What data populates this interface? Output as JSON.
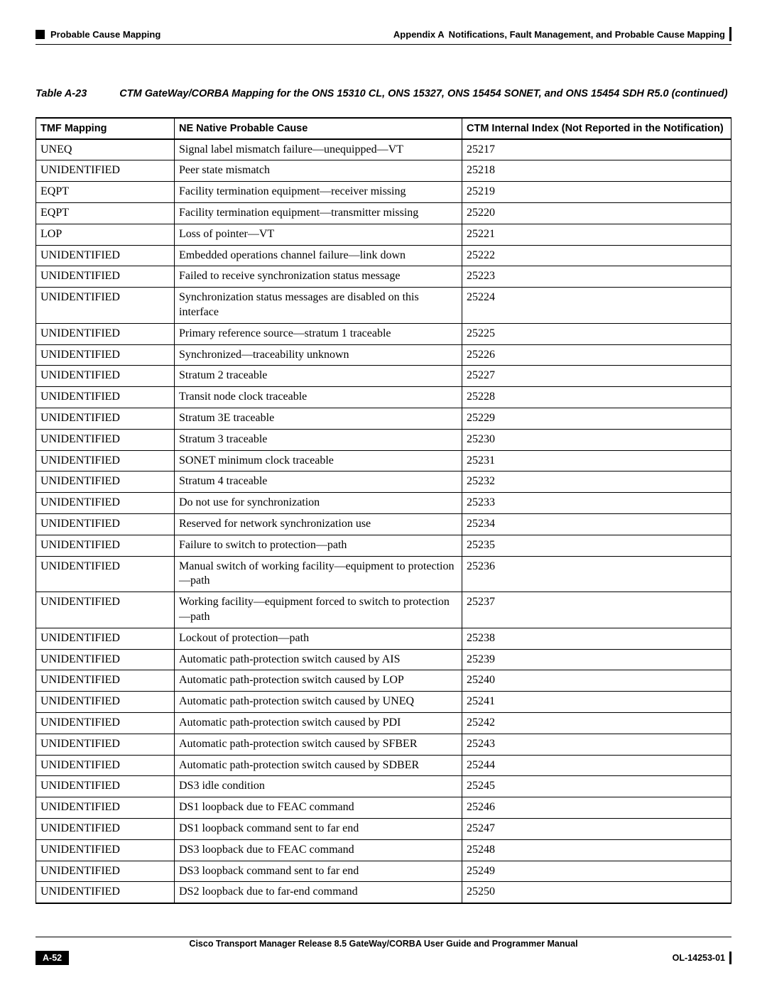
{
  "header": {
    "section_left": "Probable Cause Mapping",
    "appendix_label": "Appendix A",
    "appendix_title": "Notifications, Fault Management, and Probable Cause Mapping"
  },
  "table_caption": {
    "label": "Table A-23",
    "text": "CTM GateWay/CORBA Mapping for the ONS 15310 CL, ONS 15327, ONS 15454 SONET, and ONS 15454 SDH R5.0 (continued)"
  },
  "table": {
    "columns": [
      "TMF Mapping",
      "NE Native Probable Cause",
      "CTM Internal Index (Not Reported in the Notification)"
    ],
    "rows": [
      [
        "UNEQ",
        "Signal label mismatch failure—unequipped—VT",
        "25217"
      ],
      [
        "UNIDENTIFIED",
        "Peer state mismatch",
        "25218"
      ],
      [
        "EQPT",
        "Facility termination equipment—receiver missing",
        "25219"
      ],
      [
        "EQPT",
        "Facility termination equipment—transmitter missing",
        "25220"
      ],
      [
        "LOP",
        "Loss of pointer—VT",
        "25221"
      ],
      [
        "UNIDENTIFIED",
        "Embedded operations channel failure—link down",
        "25222"
      ],
      [
        "UNIDENTIFIED",
        "Failed to receive synchronization status message",
        "25223"
      ],
      [
        "UNIDENTIFIED",
        "Synchronization status messages are disabled on this interface",
        "25224"
      ],
      [
        "UNIDENTIFIED",
        "Primary reference source—stratum 1 traceable",
        "25225"
      ],
      [
        "UNIDENTIFIED",
        "Synchronized—traceability unknown",
        "25226"
      ],
      [
        "UNIDENTIFIED",
        "Stratum 2 traceable",
        "25227"
      ],
      [
        "UNIDENTIFIED",
        "Transit node clock traceable",
        "25228"
      ],
      [
        "UNIDENTIFIED",
        "Stratum 3E traceable",
        "25229"
      ],
      [
        "UNIDENTIFIED",
        "Stratum 3 traceable",
        "25230"
      ],
      [
        "UNIDENTIFIED",
        "SONET minimum clock traceable",
        "25231"
      ],
      [
        "UNIDENTIFIED",
        "Stratum 4 traceable",
        "25232"
      ],
      [
        "UNIDENTIFIED",
        "Do not use for synchronization",
        "25233"
      ],
      [
        "UNIDENTIFIED",
        "Reserved for network synchronization use",
        "25234"
      ],
      [
        "UNIDENTIFIED",
        "Failure to switch to protection—path",
        "25235"
      ],
      [
        "UNIDENTIFIED",
        "Manual switch of working facility—equipment to protection—path",
        "25236"
      ],
      [
        "UNIDENTIFIED",
        "Working facility—equipment forced to switch to protection—path",
        "25237"
      ],
      [
        "UNIDENTIFIED",
        "Lockout of protection—path",
        "25238"
      ],
      [
        "UNIDENTIFIED",
        "Automatic path-protection switch caused by AIS",
        "25239"
      ],
      [
        "UNIDENTIFIED",
        "Automatic path-protection switch caused by LOP",
        "25240"
      ],
      [
        "UNIDENTIFIED",
        "Automatic path-protection switch caused by UNEQ",
        "25241"
      ],
      [
        "UNIDENTIFIED",
        "Automatic path-protection switch caused by PDI",
        "25242"
      ],
      [
        "UNIDENTIFIED",
        "Automatic path-protection switch caused by SFBER",
        "25243"
      ],
      [
        "UNIDENTIFIED",
        "Automatic path-protection switch caused by SDBER",
        "25244"
      ],
      [
        "UNIDENTIFIED",
        "DS3 idle condition",
        "25245"
      ],
      [
        "UNIDENTIFIED",
        "DS1 loopback due to FEAC command",
        "25246"
      ],
      [
        "UNIDENTIFIED",
        "DS1 loopback command sent to far end",
        "25247"
      ],
      [
        "UNIDENTIFIED",
        "DS3 loopback due to FEAC command",
        "25248"
      ],
      [
        "UNIDENTIFIED",
        "DS3 loopback command sent to far end",
        "25249"
      ],
      [
        "UNIDENTIFIED",
        "DS2 loopback due to far-end command",
        "25250"
      ]
    ]
  },
  "footer": {
    "manual_title": "Cisco Transport Manager Release 8.5 GateWay/CORBA User Guide and Programmer Manual",
    "page_number": "A-52",
    "doc_id": "OL-14253-01"
  }
}
